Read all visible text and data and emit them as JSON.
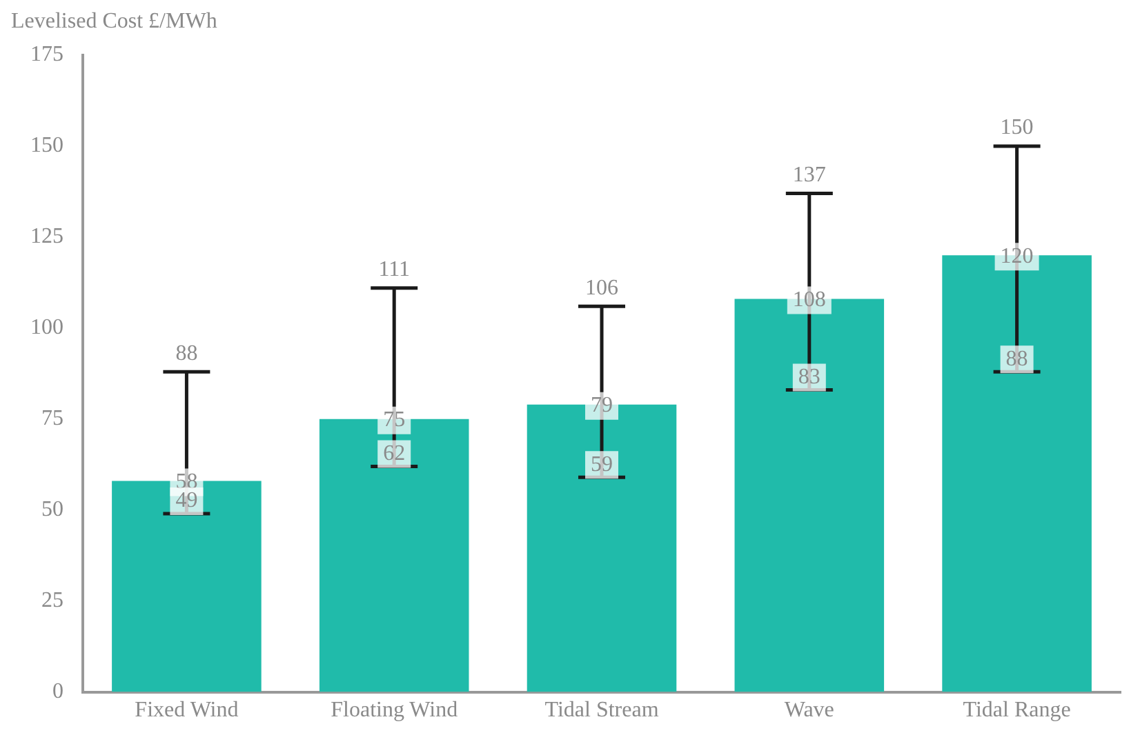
{
  "chart_data": {
    "type": "bar",
    "ylabel": "Levelised Cost £/MWh",
    "categories": [
      "Fixed Wind",
      "Floating Wind",
      "Tidal Stream",
      "Wave",
      "Tidal Range"
    ],
    "values": [
      58,
      75,
      79,
      108,
      120
    ],
    "color": "#20bbaa",
    "errors": [
      [
        49,
        88
      ],
      [
        62,
        111
      ],
      [
        59,
        106
      ],
      [
        83,
        137
      ],
      [
        88,
        150
      ]
    ],
    "data_labels": true,
    "annotations": [
      {
        "text": "49",
        "x": "Fixed Wind",
        "y": 49
      },
      {
        "text": "88",
        "x": "Fixed Wind",
        "y": 88
      },
      {
        "text": "62",
        "x": "Floating Wind",
        "y": 62
      },
      {
        "text": "111",
        "x": "Floating Wind",
        "y": 111
      },
      {
        "text": "59",
        "x": "Tidal Stream",
        "y": 59
      },
      {
        "text": "106",
        "x": "Tidal Stream",
        "y": 106
      },
      {
        "text": "83",
        "x": "Wave",
        "y": 83
      },
      {
        "text": "137",
        "x": "Wave",
        "y": 137
      },
      {
        "text": "88",
        "x": "Tidal Range",
        "y": 88
      },
      {
        "text": "150",
        "x": "Tidal Range",
        "y": 150
      }
    ],
    "ylim": [
      0,
      175
    ],
    "yticks": [
      0,
      25,
      50,
      75,
      100,
      125,
      150,
      175
    ],
    "grid": false,
    "legend": false
  }
}
